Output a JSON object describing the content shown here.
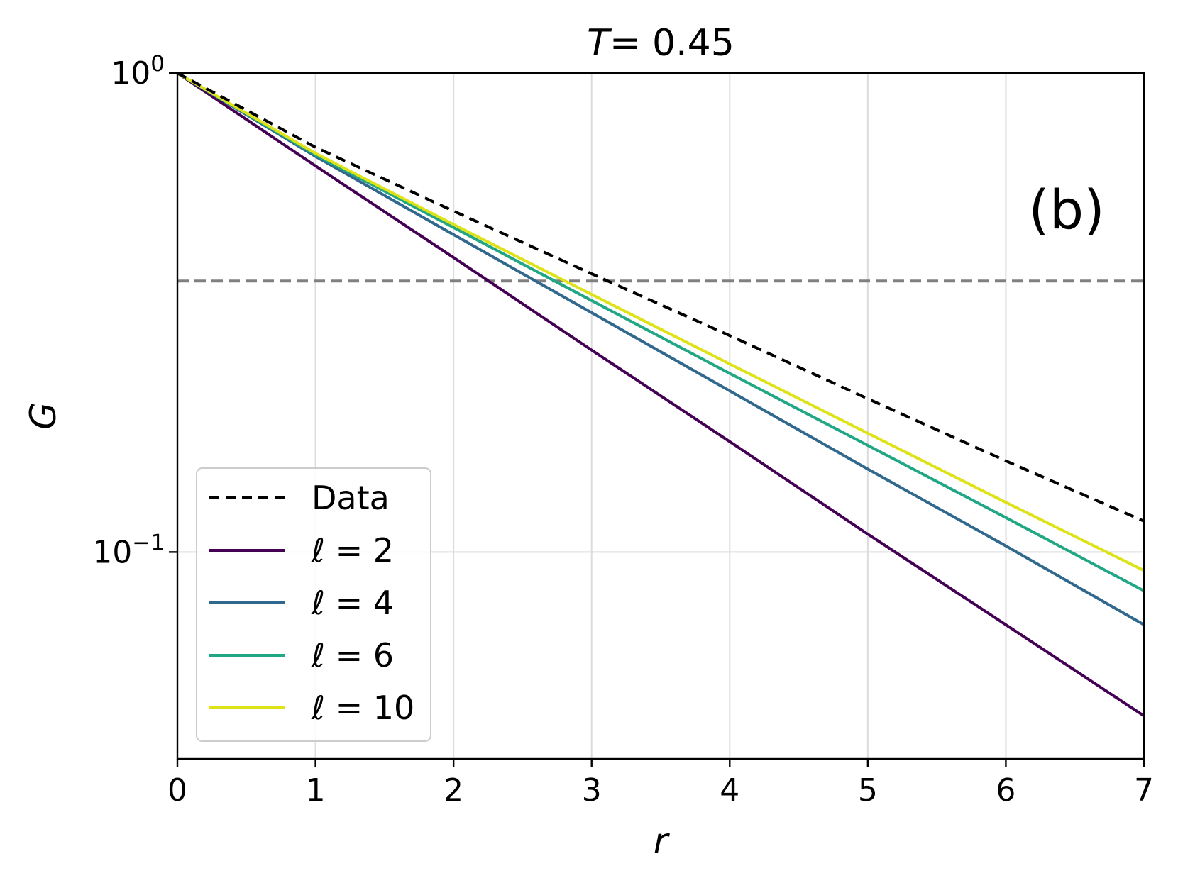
{
  "chart_data": {
    "type": "line",
    "title": {
      "var": "T",
      "value": "= 0.45"
    },
    "panel_label": "(b)",
    "xlabel": "r",
    "ylabel": "G",
    "xlim": [
      0,
      7
    ],
    "ylim": [
      0.037,
      1.0
    ],
    "yscale": "log",
    "grid": true,
    "xticks": [
      {
        "value": 0,
        "label": "0"
      },
      {
        "value": 1,
        "label": "1"
      },
      {
        "value": 2,
        "label": "2"
      },
      {
        "value": 3,
        "label": "3"
      },
      {
        "value": 4,
        "label": "4"
      },
      {
        "value": 5,
        "label": "5"
      },
      {
        "value": 6,
        "label": "6"
      },
      {
        "value": 7,
        "label": "7"
      }
    ],
    "yticks": [
      {
        "value": 1.0,
        "base": "10",
        "exp": "0"
      },
      {
        "value": 0.1,
        "base": "10",
        "exp": "−1"
      }
    ],
    "hline": {
      "y": 0.3679,
      "color": "#808080",
      "style": "dashed"
    },
    "legend_position": "lower-left",
    "x": [
      0,
      1,
      2,
      3,
      4,
      5,
      6,
      7
    ],
    "series": [
      {
        "name": "Data",
        "color": "#000000",
        "style": "dashed",
        "values": [
          1.0,
          0.7,
          0.515,
          0.381,
          0.283,
          0.209,
          0.155,
          0.116
        ]
      },
      {
        "name": "ℓ = 2",
        "color": "#440154",
        "style": "solid",
        "values": [
          1.0,
          0.64,
          0.412,
          0.264,
          0.17,
          0.109,
          0.0705,
          0.0455
        ]
      },
      {
        "name": "ℓ = 4",
        "color": "#31688e",
        "style": "solid",
        "values": [
          1.0,
          0.67,
          0.46,
          0.316,
          0.217,
          0.149,
          0.103,
          0.0705
        ]
      },
      {
        "name": "ℓ = 6",
        "color": "#21a784",
        "style": "solid",
        "values": [
          1.0,
          0.675,
          0.476,
          0.335,
          0.236,
          0.167,
          0.118,
          0.083
        ]
      },
      {
        "name": "ℓ = 10",
        "color": "#dde318",
        "style": "solid",
        "values": [
          1.0,
          0.68,
          0.483,
          0.345,
          0.247,
          0.177,
          0.127,
          0.0915
        ]
      }
    ]
  }
}
